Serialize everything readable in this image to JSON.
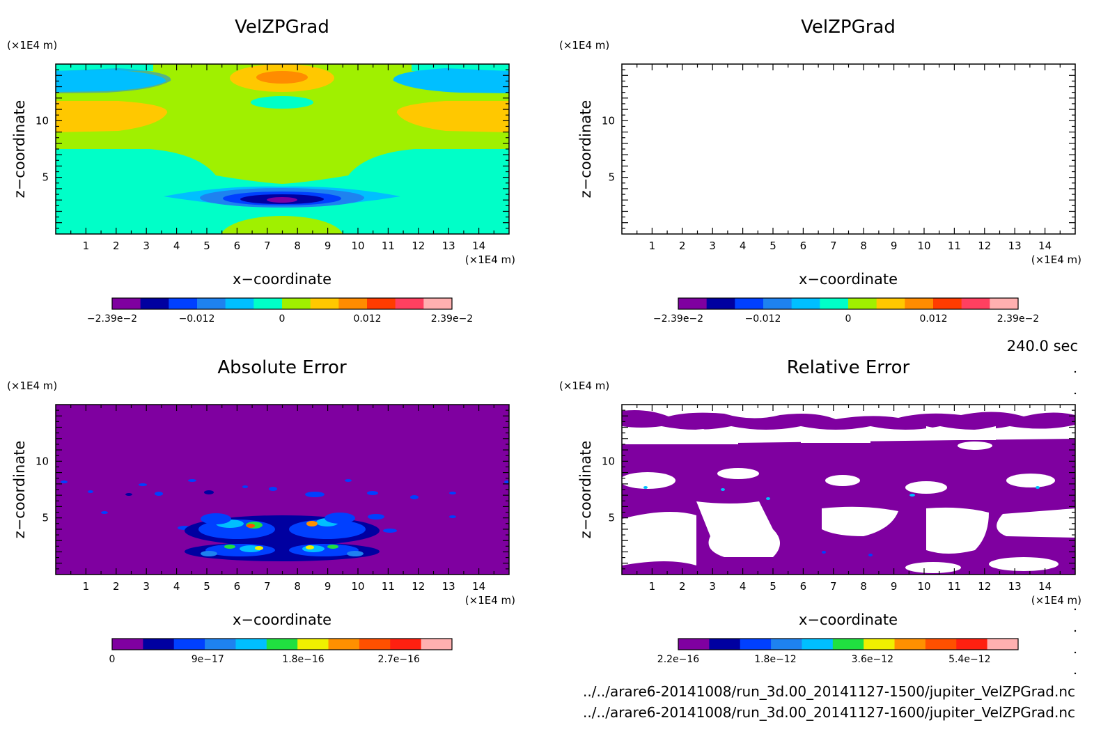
{
  "page": {
    "time_label": "240.0 sec",
    "file_a": "../../arare6-20141008/run_3d.00_20141127-1500/jupiter_VelZPGrad.nc",
    "file_b": "../../arare6-20141008/run_3d.00_20141127-1600/jupiter_VelZPGrad.nc"
  },
  "chart_data": [
    {
      "type": "heatmap",
      "title": "VelZPGrad",
      "xlabel": "x−coordinate",
      "ylabel": "z−coordinate",
      "x_unit": "(×1E4 m)",
      "y_unit": "(×1E4 m)",
      "xlim": [
        0,
        15
      ],
      "ylim": [
        0,
        15
      ],
      "x_ticks": [
        "1",
        "2",
        "3",
        "4",
        "5",
        "6",
        "7",
        "8",
        "9",
        "10",
        "11",
        "12",
        "13",
        "14"
      ],
      "y_ticks": [
        "5",
        "10"
      ],
      "colorbar": {
        "colors": [
          "#7f00a0",
          "#0000a0",
          "#0040ff",
          "#1e82f0",
          "#00bfff",
          "#00ffc8",
          "#a0f000",
          "#ffc800",
          "#ff8c00",
          "#ff3c00",
          "#ff4060",
          "#ffb0b0"
        ],
        "labels": [
          "−2.39e−2",
          "−0.012",
          "0",
          "0.012",
          "2.39e−2"
        ],
        "range": [
          -0.0239,
          0.0239
        ],
        "label_values": [
          -0.0239,
          -0.012,
          0,
          0.012,
          0.0239
        ]
      }
    },
    {
      "type": "heatmap",
      "title": "VelZPGrad",
      "xlabel": "x−coordinate",
      "ylabel": "z−coordinate",
      "x_unit": "(×1E4 m)",
      "y_unit": "(×1E4 m)",
      "xlim": [
        0,
        15
      ],
      "ylim": [
        0,
        15
      ],
      "x_ticks": [
        "1",
        "2",
        "3",
        "4",
        "5",
        "6",
        "7",
        "8",
        "9",
        "10",
        "11",
        "12",
        "13",
        "14"
      ],
      "y_ticks": [
        "5",
        "10"
      ],
      "colorbar": {
        "colors": [
          "#7f00a0",
          "#0000a0",
          "#0040ff",
          "#1e82f0",
          "#00bfff",
          "#00ffc8",
          "#a0f000",
          "#ffc800",
          "#ff8c00",
          "#ff3c00",
          "#ff4060",
          "#ffb0b0"
        ],
        "labels": [
          "−2.39e−2",
          "−0.012",
          "0",
          "0.012",
          "2.39e−2"
        ],
        "range": [
          -0.0239,
          0.0239
        ],
        "label_values": [
          -0.0239,
          -0.012,
          0,
          0.012,
          0.0239
        ]
      }
    },
    {
      "type": "heatmap",
      "title": "Absolute Error",
      "xlabel": "x−coordinate",
      "ylabel": "z−coordinate",
      "x_unit": "(×1E4 m)",
      "y_unit": "(×1E4 m)",
      "xlim": [
        0,
        15
      ],
      "ylim": [
        0,
        15
      ],
      "x_ticks": [
        "1",
        "2",
        "3",
        "4",
        "5",
        "6",
        "7",
        "8",
        "9",
        "10",
        "11",
        "12",
        "13",
        "14"
      ],
      "y_ticks": [
        "5",
        "10"
      ],
      "colorbar": {
        "colors": [
          "#7f00a0",
          "#0000a0",
          "#0040ff",
          "#1e82f0",
          "#00bfff",
          "#20e040",
          "#f0f000",
          "#ff9000",
          "#ff5000",
          "#ff2010",
          "#ffb0b0"
        ],
        "labels": [
          "0",
          "9e−17",
          "1.8e−16",
          "2.7e−16"
        ],
        "range": [
          0,
          3.2e-16
        ],
        "label_values": [
          0,
          9e-17,
          1.8e-16,
          2.7e-16
        ]
      }
    },
    {
      "type": "heatmap",
      "title": "Relative Error",
      "xlabel": "x−coordinate",
      "ylabel": "z−coordinate",
      "x_unit": "(×1E4 m)",
      "y_unit": "(×1E4 m)",
      "xlim": [
        0,
        15
      ],
      "ylim": [
        0,
        15
      ],
      "x_ticks": [
        "1",
        "2",
        "3",
        "4",
        "5",
        "6",
        "7",
        "8",
        "9",
        "10",
        "11",
        "12",
        "13",
        "14"
      ],
      "y_ticks": [
        "5",
        "10"
      ],
      "colorbar": {
        "colors": [
          "#7f00a0",
          "#0000a0",
          "#0040ff",
          "#1e82f0",
          "#00bfff",
          "#20e040",
          "#f0f000",
          "#ff9000",
          "#ff5000",
          "#ff2010",
          "#ffb0b0"
        ],
        "labels": [
          "2.2e−16",
          "1.8e−12",
          "3.6e−12",
          "5.4e−12"
        ],
        "range": [
          2.2e-16,
          6.3e-12
        ],
        "label_values": [
          2.2e-16,
          1.8e-12,
          3.6e-12,
          5.4e-12
        ]
      }
    }
  ]
}
